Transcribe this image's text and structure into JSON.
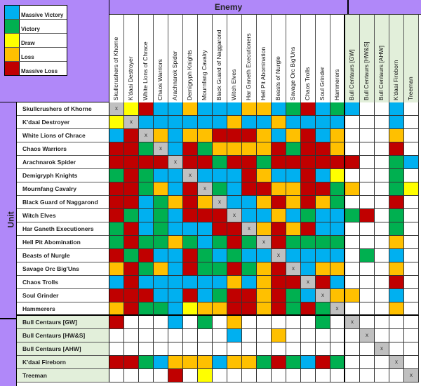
{
  "legend": [
    {
      "key": "MV",
      "label": "Massive Victory",
      "color": "#00b0f0"
    },
    {
      "key": "V",
      "label": "Victory",
      "color": "#00b050"
    },
    {
      "key": "D",
      "label": "Draw",
      "color": "#ffff00"
    },
    {
      "key": "L",
      "label": "Loss",
      "color": "#ffc000"
    },
    {
      "key": "ML",
      "label": "Massive Loss",
      "color": "#c00000"
    }
  ],
  "header": {
    "enemy_title": "Enemy",
    "unit_title": "Unit"
  },
  "colors": {
    "header_purple": "#b088f9",
    "extra_green": "#e2efda",
    "self_gray": "#c0c0c0"
  },
  "columns": [
    "Skullcrushers of Khorne",
    "K'daai Destroyer",
    "White Lions of Chrace",
    "Chaos Warriors",
    "Arachnarok Spider",
    "Demigryph Knights",
    "Mournfang Cavalry",
    "Black Guard of Naggarond",
    "Witch Elves",
    "Har Ganeth Executioners",
    "Hell Pit Abomination",
    "Beasts of Nurgle",
    "Savage Orc Big'Uns",
    "Chaos Trolls",
    "Soul Grinder",
    "Hammerers",
    "Bull Centaurs [GW]",
    "Bull Centaurs [HW&S]",
    "Bull Centaurs [AHW]",
    "K'daai Fireborn",
    "Treeman"
  ],
  "self_mark": "x",
  "rows": [
    {
      "label": "Skullcrushers of Khorne",
      "cells": [
        "X",
        "D",
        "ML",
        "MV",
        "MV",
        "L",
        "MV",
        "MV",
        "MV",
        "L",
        "L",
        "MV",
        "V",
        "ML",
        "MV",
        "V",
        "MV",
        "",
        "",
        "MV",
        ""
      ]
    },
    {
      "label": "K'daai Destroyer",
      "cells": [
        "D",
        "X",
        "MV",
        "MV",
        "MV",
        "MV",
        "MV",
        "MV",
        "L",
        "MV",
        "MV",
        "L",
        "MV",
        "MV",
        "MV",
        "MV",
        "",
        "",
        "",
        "MV",
        ""
      ]
    },
    {
      "label": "White Lions of Chrace",
      "cells": [
        "MV",
        "ML",
        "X",
        "L",
        "MV",
        "L",
        "L",
        "ML",
        "ML",
        "ML",
        "L",
        "MV",
        "L",
        "ML",
        "MV",
        "L",
        "",
        "",
        "",
        "L",
        ""
      ]
    },
    {
      "label": "Chaos Warriors",
      "cells": [
        "ML",
        "ML",
        "V",
        "X",
        "MV",
        "ML",
        "V",
        "L",
        "L",
        "L",
        "L",
        "ML",
        "V",
        "ML",
        "ML",
        "L",
        "",
        "",
        "",
        "ML",
        ""
      ]
    },
    {
      "label": "Arachnarok Spider",
      "cells": [
        "ML",
        "ML",
        "ML",
        "ML",
        "X",
        "ML",
        "ML",
        "V",
        "ML",
        "ML",
        "V",
        "ML",
        "ML",
        "ML",
        "ML",
        "ML",
        "ML",
        "",
        "",
        "V",
        "MV"
      ]
    },
    {
      "label": "Demigryph Knights",
      "cells": [
        "V",
        "ML",
        "V",
        "MV",
        "MV",
        "X",
        "MV",
        "MV",
        "MV",
        "ML",
        "L",
        "MV",
        "MV",
        "ML",
        "MV",
        "D",
        "",
        "",
        "",
        "V",
        ""
      ]
    },
    {
      "label": "Mournfang Cavalry",
      "cells": [
        "ML",
        "ML",
        "V",
        "L",
        "MV",
        "ML",
        "X",
        "V",
        "MV",
        "ML",
        "ML",
        "L",
        "L",
        "ML",
        "ML",
        "V",
        "L",
        "",
        "",
        "V",
        "D"
      ]
    },
    {
      "label": "Black Guard of Naggarond",
      "cells": [
        "ML",
        "ML",
        "MV",
        "V",
        "L",
        "ML",
        "L",
        "X",
        "MV",
        "MV",
        "L",
        "ML",
        "L",
        "ML",
        "L",
        "V",
        "",
        "",
        "",
        "ML",
        ""
      ]
    },
    {
      "label": "Witch Elves",
      "cells": [
        "ML",
        "V",
        "MV",
        "V",
        "MV",
        "ML",
        "ML",
        "ML",
        "X",
        "MV",
        "MV",
        "L",
        "MV",
        "V",
        "MV",
        "MV",
        "V",
        "ML",
        "",
        "V",
        ""
      ]
    },
    {
      "label": "Har Ganeth Executioners",
      "cells": [
        "V",
        "ML",
        "MV",
        "V",
        "MV",
        "MV",
        "MV",
        "ML",
        "ML",
        "X",
        "L",
        "ML",
        "L",
        "ML",
        "MV",
        "MV",
        "",
        "",
        "",
        "V",
        ""
      ]
    },
    {
      "label": "Hell Pit Abomination",
      "cells": [
        "V",
        "ML",
        "V",
        "V",
        "L",
        "V",
        "MV",
        "V",
        "ML",
        "V",
        "X",
        "ML",
        "V",
        "V",
        "V",
        "V",
        "",
        "",
        "",
        "L",
        ""
      ]
    },
    {
      "label": "Beasts of Nurgle",
      "cells": [
        "ML",
        "V",
        "ML",
        "MV",
        "MV",
        "ML",
        "V",
        "MV",
        "V",
        "MV",
        "MV",
        "X",
        "MV",
        "MV",
        "MV",
        "MV",
        "",
        "V",
        "",
        "MV",
        ""
      ]
    },
    {
      "label": "Savage Orc Big'Uns",
      "cells": [
        "L",
        "ML",
        "V",
        "L",
        "MV",
        "ML",
        "V",
        "V",
        "ML",
        "V",
        "L",
        "ML",
        "X",
        "MV",
        "L",
        "L",
        "",
        "",
        "",
        "L",
        ""
      ]
    },
    {
      "label": "Chaos Trolls",
      "cells": [
        "MV",
        "ML",
        "MV",
        "MV",
        "MV",
        "MV",
        "MV",
        "MV",
        "L",
        "MV",
        "L",
        "ML",
        "ML",
        "X",
        "ML",
        "MV",
        "",
        "",
        "",
        "ML",
        ""
      ]
    },
    {
      "label": "Soul Grinder",
      "cells": [
        "ML",
        "ML",
        "ML",
        "MV",
        "MV",
        "ML",
        "MV",
        "V",
        "ML",
        "ML",
        "L",
        "ML",
        "V",
        "MV",
        "X",
        "L",
        "L",
        "",
        "",
        "MV",
        ""
      ]
    },
    {
      "label": "Hammerers",
      "cells": [
        "L",
        "ML",
        "V",
        "V",
        "MV",
        "D",
        "L",
        "L",
        "ML",
        "ML",
        "L",
        "ML",
        "V",
        "ML",
        "V",
        "X",
        "",
        "",
        "",
        "L",
        ""
      ]
    },
    {
      "label": "Bull Centaurs [GW]",
      "cells": [
        "ML",
        "",
        "",
        "",
        "MV",
        "",
        "V",
        "",
        "L",
        "",
        "",
        "",
        "",
        "",
        "V",
        "",
        "X",
        "",
        "",
        "",
        ""
      ]
    },
    {
      "label": "Bull Centaurs [HW&S]",
      "cells": [
        "",
        "",
        "",
        "",
        "",
        "",
        "",
        "",
        "MV",
        "",
        "",
        "L",
        "",
        "",
        "",
        "",
        "",
        "X",
        "",
        "",
        ""
      ]
    },
    {
      "label": "Bull Centaurs [AHW]",
      "cells": [
        "",
        "",
        "",
        "",
        "",
        "",
        "",
        "",
        "",
        "",
        "",
        "",
        "",
        "",
        "",
        "",
        "",
        "",
        "X",
        "",
        ""
      ]
    },
    {
      "label": "K'daai Fireborn",
      "cells": [
        "ML",
        "ML",
        "V",
        "MV",
        "L",
        "L",
        "L",
        "MV",
        "L",
        "L",
        "V",
        "ML",
        "V",
        "MV",
        "ML",
        "V",
        "",
        "",
        "",
        "X",
        ""
      ]
    },
    {
      "label": "Treeman",
      "cells": [
        "",
        "",
        "",
        "",
        "ML",
        "",
        "D",
        "",
        "",
        "",
        "",
        "",
        "",
        "",
        "",
        "",
        "",
        "",
        "",
        "",
        "X"
      ]
    }
  ]
}
